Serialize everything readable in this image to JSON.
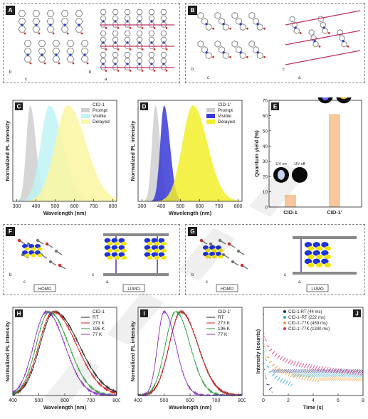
{
  "panels": {
    "A": {
      "letter": "A",
      "axes_left": [
        "b",
        "c"
      ],
      "axes_right": [
        "b",
        "a"
      ]
    },
    "B": {
      "letter": "B",
      "axes_left": [
        "b",
        "c"
      ],
      "axes_right": [
        "c",
        "a"
      ]
    },
    "F": {
      "letter": "F",
      "homo": "HOMO",
      "lumo": "LUMO",
      "axes_left": [
        "b",
        "c"
      ],
      "axes_right": [
        "c",
        "a"
      ]
    },
    "G": {
      "letter": "G",
      "homo": "HOMO",
      "lumo": "LUMO",
      "axes_left": [
        "b",
        "c"
      ],
      "axes_right": [
        "c",
        "a"
      ]
    }
  },
  "colors": {
    "prompt": "#cfcfcf",
    "visible_c": "#bff3f5",
    "delayed": "#fbf6a0",
    "visible_d": "#3a3ad8",
    "delayed_d": "#f2ef2a",
    "rt": "#222222",
    "k273": "#d62020",
    "k196": "#2c9e3a",
    "k77": "#8b2fc9",
    "bar": "#f8c79b",
    "j1": "#1c2f7a",
    "j2": "#2aa6c9",
    "j3": "#f39a30",
    "j4": "#e0297f"
  },
  "chart_data": [
    {
      "id": "C",
      "letter": "C",
      "type": "area",
      "xlabel": "Wavelength (nm)",
      "ylabel": "Normalized PL intensity",
      "xlim": [
        280,
        820
      ],
      "xticks": [
        300,
        400,
        500,
        600,
        700,
        800
      ],
      "legend_title": "CID-1",
      "legend": [
        "Prompt",
        "Visible",
        "Delayed"
      ],
      "series": [
        {
          "name": "Prompt",
          "peak": 370,
          "sigma_l": 20,
          "sigma_r": 30,
          "color": "#cfcfcf"
        },
        {
          "name": "Visible",
          "peak": 470,
          "sigma_l": 45,
          "sigma_r": 70,
          "color": "#bff3f5"
        },
        {
          "name": "Delayed",
          "peak": 565,
          "sigma_l": 65,
          "sigma_r": 95,
          "color": "#fbf6a0"
        }
      ]
    },
    {
      "id": "D",
      "letter": "D",
      "type": "area",
      "xlabel": "Wavelength (nm)",
      "ylabel": "Normalized PL intensity",
      "xlim": [
        280,
        820
      ],
      "xticks": [
        300,
        400,
        500,
        600,
        700,
        800
      ],
      "legend_title": "CID-1'",
      "legend": [
        "Prompt",
        "Visible",
        "Delayed"
      ],
      "series": [
        {
          "name": "Prompt",
          "peak": 370,
          "sigma_l": 18,
          "sigma_r": 25,
          "color": "#cfcfcf"
        },
        {
          "name": "Visible",
          "peak": 415,
          "sigma_l": 20,
          "sigma_r": 30,
          "color": "#3a3ad8"
        },
        {
          "name": "Delayed",
          "peak": 565,
          "sigma_l": 55,
          "sigma_r": 75,
          "color": "#f2ef2a"
        }
      ]
    },
    {
      "id": "E",
      "letter": "E",
      "type": "bar",
      "ylabel": "Quantum yield (%)",
      "ylim": [
        0,
        70
      ],
      "yticks": [
        0,
        10,
        20,
        30,
        40,
        50,
        60,
        70
      ],
      "categories": [
        "CID-1",
        "CID-1'"
      ],
      "values": [
        8,
        61
      ],
      "insets": [
        [
          "UV on",
          "UV off"
        ],
        [
          "UV on",
          "UV off"
        ]
      ]
    },
    {
      "id": "H",
      "letter": "H",
      "type": "line",
      "xlabel": "Wavelength (nm)",
      "ylabel": "Normalized PL intensity",
      "xlim": [
        400,
        800
      ],
      "xticks": [
        400,
        500,
        600,
        700,
        800
      ],
      "legend_title": "CID-1",
      "series": [
        {
          "name": "RT",
          "peak": 560,
          "sigma_l": 55,
          "sigma_r": 95,
          "color": "#222222"
        },
        {
          "name": "273 K",
          "peak": 555,
          "sigma_l": 55,
          "sigma_r": 90,
          "color": "#d62020"
        },
        {
          "name": "196 K",
          "peak": 540,
          "sigma_l": 50,
          "sigma_r": 75,
          "color": "#2c9e3a"
        },
        {
          "name": "77 K",
          "peak": 530,
          "sigma_l": 50,
          "sigma_r": 70,
          "color": "#8b2fc9"
        }
      ]
    },
    {
      "id": "I",
      "letter": "I",
      "type": "line",
      "xlabel": "Wavelength (nm)",
      "ylabel": "Normalized PL intensity",
      "xlim": [
        400,
        800
      ],
      "xticks": [
        400,
        500,
        600,
        700,
        800
      ],
      "legend_title": "CID-1'",
      "series": [
        {
          "name": "RT",
          "peak": 565,
          "sigma_l": 45,
          "sigma_r": 65,
          "color": "#222222"
        },
        {
          "name": "273 K",
          "peak": 565,
          "sigma_l": 45,
          "sigma_r": 65,
          "color": "#d62020"
        },
        {
          "name": "196 K",
          "peak": 545,
          "sigma_l": 40,
          "sigma_r": 55,
          "color": "#2c9e3a"
        },
        {
          "name": "77 K",
          "peak": 500,
          "sigma_l": 25,
          "sigma_r": 45,
          "color": "#8b2fc9"
        }
      ]
    },
    {
      "id": "J",
      "letter": "J",
      "type": "scatter",
      "xlabel": "Time (s)",
      "ylabel": "Intensity (counts)",
      "xlim": [
        0,
        8
      ],
      "xticks": [
        0,
        2,
        4,
        6,
        8
      ],
      "series": [
        {
          "name": "CID-1-RT (44 ms)",
          "tau": 0.044,
          "color": "#1c2f7a"
        },
        {
          "name": "CID-1'-RT (222 ms)",
          "tau": 0.222,
          "color": "#2aa6c9"
        },
        {
          "name": "CID-1'-77K (459 ms)",
          "tau": 0.459,
          "color": "#f39a30"
        },
        {
          "name": "CID-1'-77K (1340 ms)",
          "tau": 1.34,
          "color": "#e0297f"
        }
      ]
    }
  ]
}
